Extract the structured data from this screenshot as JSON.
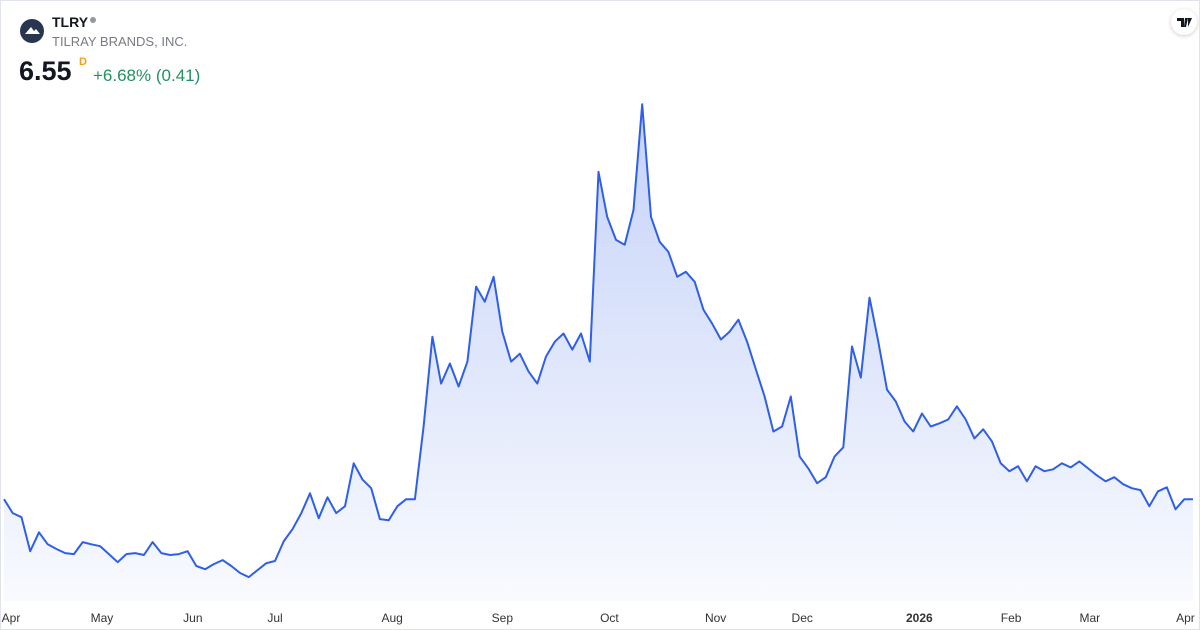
{
  "header": {
    "symbol": "TLRY",
    "company": "TILRAY BRANDS, INC.",
    "price": 6.55,
    "price_flag": "D",
    "change": "+6.68% (0.41)"
  },
  "chart_data": {
    "type": "area",
    "color": "#2f5fe8",
    "values": [
      6.55,
      5.97,
      5.8,
      4.38,
      5.17,
      4.67,
      4.47,
      4.3,
      4.26,
      4.76,
      4.67,
      4.59,
      4.26,
      3.92,
      4.26,
      4.3,
      4.22,
      4.76,
      4.3,
      4.22,
      4.26,
      4.38,
      3.76,
      3.63,
      3.84,
      4.01,
      3.76,
      3.47,
      3.3,
      3.59,
      3.88,
      3.97,
      4.8,
      5.3,
      5.97,
      6.8,
      5.76,
      6.63,
      5.97,
      6.26,
      8.05,
      7.38,
      7.01,
      5.72,
      5.67,
      6.26,
      6.55,
      6.55,
      9.59,
      13.34,
      11.38,
      12.22,
      11.26,
      12.3,
      15.43,
      14.8,
      15.84,
      13.55,
      12.3,
      12.63,
      11.88,
      11.38,
      12.51,
      13.13,
      13.47,
      12.8,
      13.47,
      12.3,
      20.22,
      18.34,
      17.38,
      17.18,
      18.63,
      23.05,
      18.34,
      17.3,
      16.88,
      15.84,
      16.05,
      15.63,
      14.47,
      13.88,
      13.22,
      13.55,
      14.05,
      13.13,
      11.97,
      10.84,
      9.38,
      9.59,
      10.84,
      8.34,
      7.84,
      7.22,
      7.47,
      8.34,
      8.72,
      12.93,
      11.63,
      14.97,
      13.13,
      11.13,
      10.63,
      9.8,
      9.38,
      10.13,
      9.59,
      9.72,
      9.88,
      10.43,
      9.88,
      9.09,
      9.47,
      8.97,
      8.05,
      7.72,
      7.93,
      7.3,
      7.93,
      7.72,
      7.8,
      8.05,
      7.88,
      8.13,
      7.84,
      7.55,
      7.3,
      7.47,
      7.18,
      7.01,
      6.93,
      6.26,
      6.88,
      7.05,
      6.13,
      6.55,
      6.55
    ],
    "ylim": [
      2.3,
      23.6
    ],
    "xlim": [
      0,
      136
    ],
    "xticks": [
      {
        "value": 0.8,
        "label": "Apr"
      },
      {
        "value": 11.2,
        "label": "May"
      },
      {
        "value": 21.6,
        "label": "Jun"
      },
      {
        "value": 31,
        "label": "Jul"
      },
      {
        "value": 44.4,
        "label": "Aug"
      },
      {
        "value": 57,
        "label": "Sep"
      },
      {
        "value": 69.25,
        "label": "Oct"
      },
      {
        "value": 81.4,
        "label": "Nov"
      },
      {
        "value": 91.3,
        "label": "Dec"
      },
      {
        "value": 104.7,
        "label": "2026"
      },
      {
        "value": 115.2,
        "label": "Feb"
      },
      {
        "value": 124.2,
        "label": "Mar"
      },
      {
        "value": 135.14,
        "label": "Apr"
      }
    ]
  }
}
